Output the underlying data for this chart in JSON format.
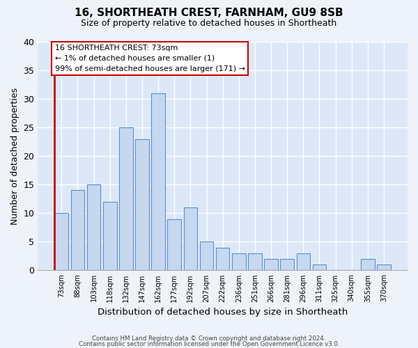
{
  "title1": "16, SHORTHEATH CREST, FARNHAM, GU9 8SB",
  "title2": "Size of property relative to detached houses in Shortheath",
  "xlabel": "Distribution of detached houses by size in Shortheath",
  "ylabel": "Number of detached properties",
  "categories": [
    "73sqm",
    "88sqm",
    "103sqm",
    "118sqm",
    "132sqm",
    "147sqm",
    "162sqm",
    "177sqm",
    "192sqm",
    "207sqm",
    "222sqm",
    "236sqm",
    "251sqm",
    "266sqm",
    "281sqm",
    "296sqm",
    "311sqm",
    "325sqm",
    "340sqm",
    "355sqm",
    "370sqm"
  ],
  "values": [
    10,
    14,
    15,
    12,
    25,
    23,
    31,
    9,
    11,
    5,
    4,
    3,
    3,
    2,
    2,
    3,
    1,
    0,
    0,
    2,
    1
  ],
  "bar_color": "#c5d8f0",
  "bar_edge_color": "#5b8fc9",
  "highlight_bar_index": 0,
  "red_line_x": 0,
  "ylim": [
    0,
    40
  ],
  "yticks": [
    0,
    5,
    10,
    15,
    20,
    25,
    30,
    35,
    40
  ],
  "fig_background_color": "#eef3fb",
  "ax_background_color": "#dce8f8",
  "grid_color": "#ffffff",
  "annotation_text": "16 SHORTHEATH CREST: 73sqm\n← 1% of detached houses are smaller (1)\n99% of semi-detached houses are larger (171) →",
  "annotation_box_color": "#ffffff",
  "annotation_box_edge": "#cc0000",
  "footer1": "Contains HM Land Registry data © Crown copyright and database right 2024.",
  "footer2": "Contains public sector information licensed under the Open Government Licence v3.0."
}
